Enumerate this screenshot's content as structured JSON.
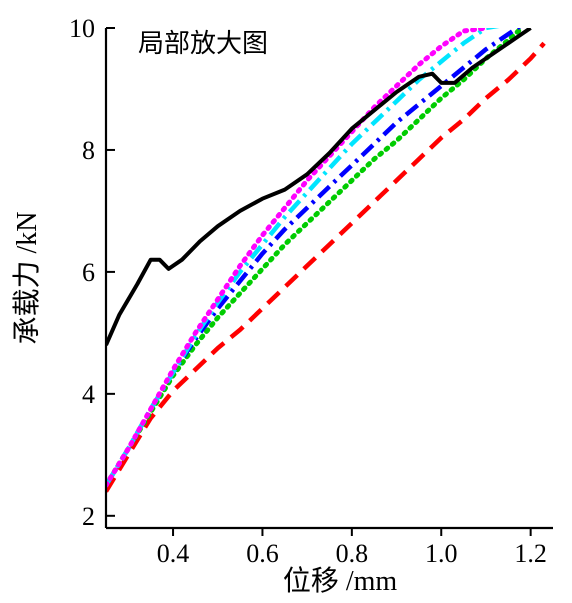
{
  "chart_data": {
    "type": "line",
    "annotation": "局部放大图",
    "xlabel": "位移 /mm",
    "ylabel": "承载力 /kN",
    "xlim": [
      0.25,
      1.25
    ],
    "ylim": [
      1.8,
      10
    ],
    "xticks": [
      0.4,
      0.6,
      0.8,
      1.0,
      1.2
    ],
    "xtick_labels": [
      "0.4",
      "0.6",
      "0.8",
      "1.0",
      "1.2"
    ],
    "yticks": [
      2,
      4,
      6,
      8,
      10
    ],
    "ytick_labels": [
      "2",
      "4",
      "6",
      "8",
      "10"
    ],
    "grid": false,
    "legend": "none",
    "series": [
      {
        "color": "#000000",
        "style": "solid",
        "x": [
          0.25,
          0.28,
          0.32,
          0.35,
          0.37,
          0.39,
          0.42,
          0.46,
          0.5,
          0.55,
          0.6,
          0.65,
          0.7,
          0.75,
          0.8,
          0.85,
          0.9,
          0.95,
          0.98,
          1.0,
          1.03,
          1.07,
          1.12,
          1.17,
          1.2
        ],
        "y": [
          4.8,
          5.3,
          5.8,
          6.2,
          6.2,
          6.05,
          6.2,
          6.5,
          6.75,
          7.0,
          7.2,
          7.35,
          7.6,
          7.95,
          8.35,
          8.65,
          8.95,
          9.2,
          9.25,
          9.1,
          9.1,
          9.35,
          9.6,
          9.85,
          10.0
        ]
      },
      {
        "color": "#ff00ff",
        "style": "dotted",
        "x": [
          0.25,
          0.3,
          0.35,
          0.4,
          0.45,
          0.5,
          0.55,
          0.6,
          0.65,
          0.7,
          0.75,
          0.8,
          0.85,
          0.9,
          0.95,
          1.0,
          1.05,
          1.1
        ],
        "y": [
          2.5,
          3.1,
          3.75,
          4.4,
          5.0,
          5.55,
          6.1,
          6.6,
          7.05,
          7.5,
          7.9,
          8.3,
          8.7,
          9.05,
          9.4,
          9.7,
          9.95,
          10.0
        ]
      },
      {
        "color": "#00e5ff",
        "style": "dash-dot",
        "x": [
          0.25,
          0.3,
          0.35,
          0.4,
          0.45,
          0.5,
          0.55,
          0.6,
          0.65,
          0.7,
          0.75,
          0.8,
          0.85,
          0.9,
          0.95,
          1.0,
          1.05,
          1.1,
          1.14
        ],
        "y": [
          2.5,
          3.1,
          3.75,
          4.35,
          4.95,
          5.5,
          6.0,
          6.45,
          6.9,
          7.3,
          7.7,
          8.1,
          8.45,
          8.8,
          9.15,
          9.45,
          9.75,
          10.0,
          10.05
        ]
      },
      {
        "color": "#0000ff",
        "style": "dash-dot",
        "x": [
          0.25,
          0.3,
          0.35,
          0.4,
          0.45,
          0.5,
          0.55,
          0.6,
          0.65,
          0.7,
          0.75,
          0.8,
          0.85,
          0.9,
          0.95,
          1.0,
          1.05,
          1.1,
          1.15,
          1.18
        ],
        "y": [
          2.5,
          3.1,
          3.75,
          4.35,
          4.9,
          5.4,
          5.85,
          6.3,
          6.7,
          7.05,
          7.4,
          7.75,
          8.1,
          8.45,
          8.75,
          9.05,
          9.35,
          9.65,
          9.9,
          10.05
        ]
      },
      {
        "color": "#00cc00",
        "style": "dotted",
        "x": [
          0.25,
          0.3,
          0.35,
          0.4,
          0.45,
          0.5,
          0.55,
          0.6,
          0.65,
          0.7,
          0.75,
          0.8,
          0.85,
          0.9,
          0.95,
          1.0,
          1.05,
          1.1,
          1.15,
          1.18
        ],
        "y": [
          2.5,
          3.1,
          3.7,
          4.3,
          4.8,
          5.25,
          5.65,
          6.05,
          6.45,
          6.8,
          7.15,
          7.5,
          7.85,
          8.15,
          8.5,
          8.85,
          9.15,
          9.5,
          9.8,
          10.0
        ]
      },
      {
        "color": "#ff0000",
        "style": "dashed",
        "x": [
          0.25,
          0.3,
          0.35,
          0.4,
          0.45,
          0.5,
          0.55,
          0.6,
          0.65,
          0.7,
          0.75,
          0.8,
          0.85,
          0.9,
          0.95,
          1.0,
          1.05,
          1.1,
          1.15,
          1.2,
          1.23
        ],
        "y": [
          2.4,
          3.0,
          3.6,
          4.05,
          4.4,
          4.75,
          5.05,
          5.4,
          5.75,
          6.1,
          6.45,
          6.8,
          7.15,
          7.5,
          7.85,
          8.2,
          8.5,
          8.85,
          9.15,
          9.5,
          9.75
        ]
      }
    ]
  }
}
